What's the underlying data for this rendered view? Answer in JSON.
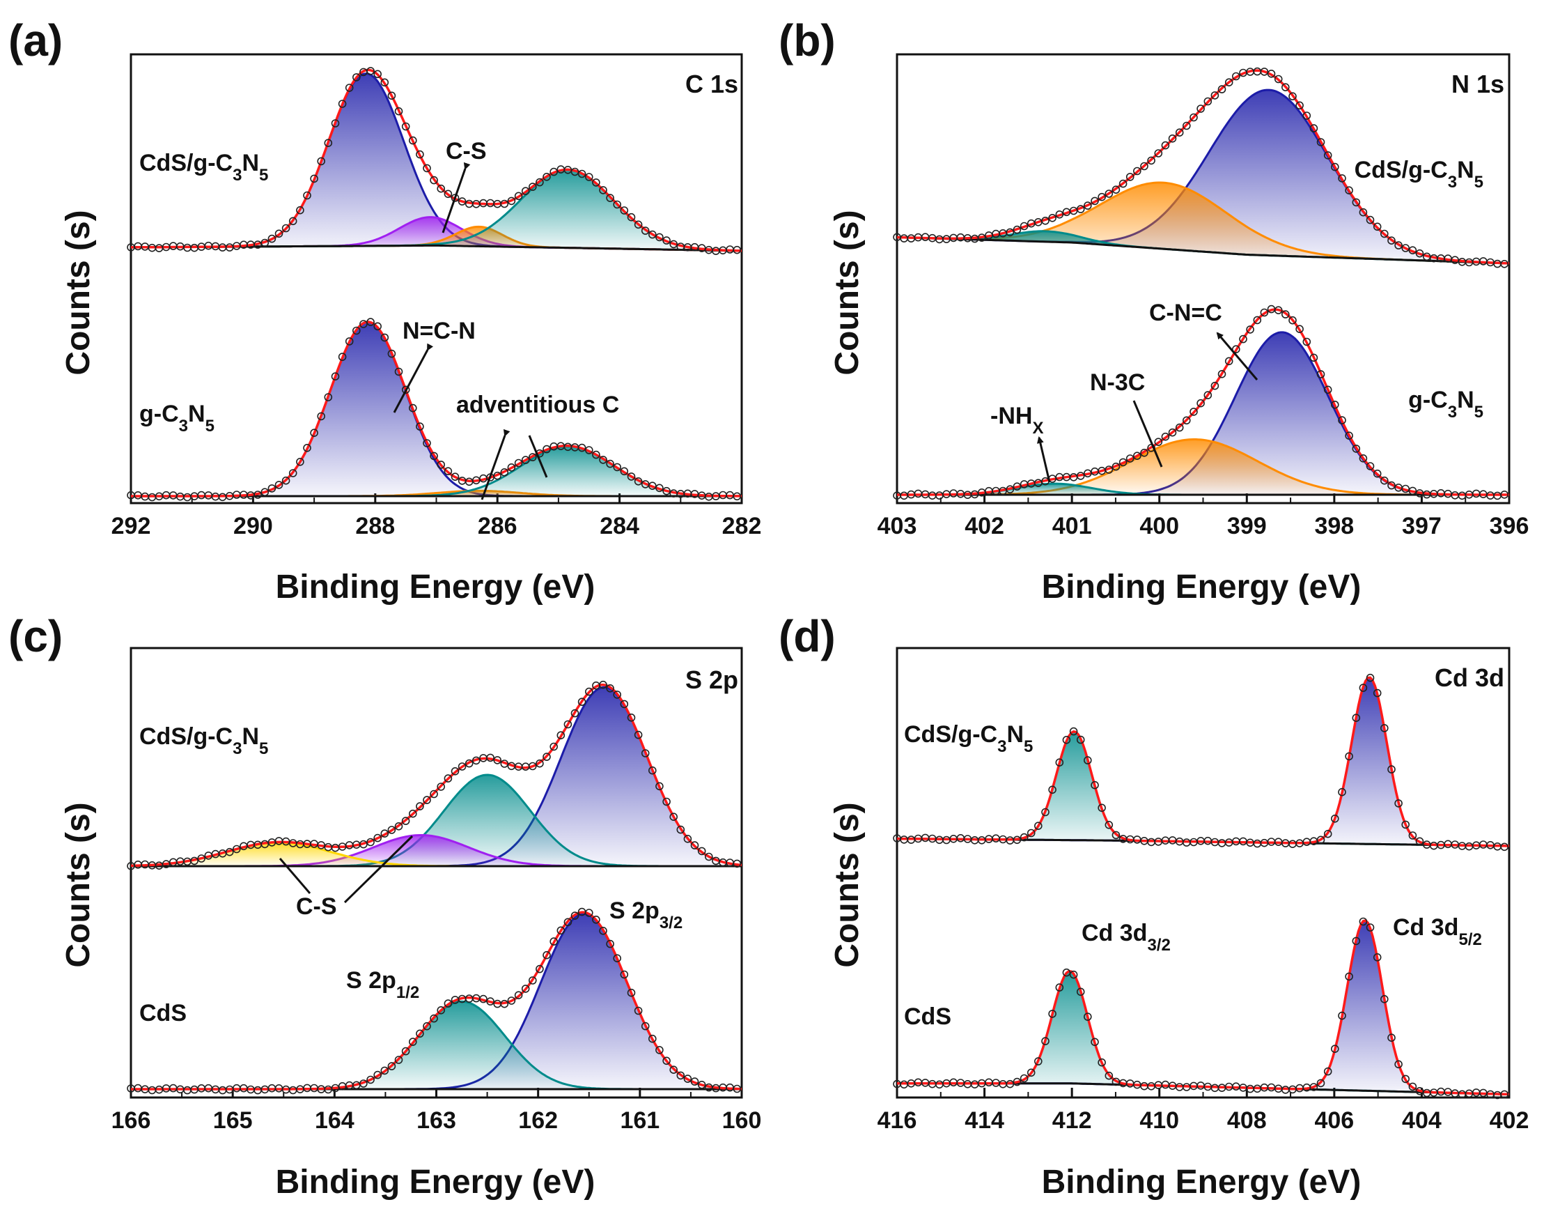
{
  "chart_data": [
    {
      "type": "line",
      "panel": "(a)",
      "core_level": "C 1s",
      "xlabel": "Binding Energy (eV)",
      "ylabel": "Counts (s)",
      "xlim": [
        292,
        282
      ],
      "xticks": [
        292,
        290,
        288,
        286,
        284,
        282
      ],
      "traces": [
        {
          "sample": "CdS/g-C3N5",
          "label_parts": [
            "CdS/g-C",
            "3",
            "N",
            "5"
          ],
          "baseline": [
            [
              292,
              0.02
            ],
            [
              287,
              0.03
            ],
            [
              282,
              0.0
            ]
          ],
          "components": [
            {
              "name": "N=C-N",
              "center": 288.15,
              "fwhm": 1.45,
              "height": 0.97,
              "color": "#1c1ca8"
            },
            {
              "name": "C-S",
              "center": 287.1,
              "fwhm": 1.2,
              "height": 0.16,
              "color": "#a020f0"
            },
            {
              "name": "C-S",
              "center": 286.3,
              "fwhm": 0.9,
              "height": 0.11,
              "color": "#ff8c00"
            },
            {
              "name": "adventitious C",
              "center": 284.85,
              "fwhm": 1.8,
              "height": 0.44,
              "color": "#008b8b"
            }
          ]
        },
        {
          "sample": "g-C3N5",
          "label_parts": [
            "g-C",
            "3",
            "N",
            "5"
          ],
          "baseline": [
            [
              292,
              0.0
            ],
            [
              282,
              0.0
            ]
          ],
          "components": [
            {
              "name": "N=C-N",
              "center": 288.12,
              "fwhm": 1.45,
              "height": 0.98,
              "color": "#1c1ca8"
            },
            {
              "name": "adventitious C",
              "center": 286.3,
              "fwhm": 1.6,
              "height": 0.03,
              "color": "#ff8c00"
            },
            {
              "name": "adventitious C",
              "center": 284.85,
              "fwhm": 1.8,
              "height": 0.28,
              "color": "#008b8b"
            }
          ]
        }
      ],
      "annotations": [
        "C-S",
        "N=C-N",
        "adventitious C"
      ]
    },
    {
      "type": "line",
      "panel": "(b)",
      "core_level": "N 1s",
      "xlabel": "Binding Energy (eV)",
      "ylabel": "Counts (s)",
      "xlim": [
        403,
        396
      ],
      "xticks": [
        403,
        402,
        401,
        400,
        399,
        398,
        397,
        396
      ],
      "traces": [
        {
          "sample": "CdS/g-C3N5",
          "label_parts": [
            "CdS/g-C",
            "3",
            "N",
            "5"
          ],
          "baseline": [
            [
              403,
              0.15
            ],
            [
              401,
              0.12
            ],
            [
              399,
              0.05
            ],
            [
              396,
              0.0
            ]
          ],
          "components": [
            {
              "name": "C-N=C",
              "center": 398.75,
              "fwhm": 1.6,
              "height": 0.95,
              "color": "#1c1ca8"
            },
            {
              "name": "N-3C",
              "center": 399.95,
              "fwhm": 1.7,
              "height": 0.38,
              "color": "#ff8c00"
            },
            {
              "name": "-NHX",
              "center": 401.3,
              "fwhm": 0.9,
              "height": 0.06,
              "color": "#008b8b"
            }
          ]
        },
        {
          "sample": "g-C3N5",
          "label_parts": [
            "g-C",
            "3",
            "N",
            "5"
          ],
          "baseline": [
            [
              403,
              0.0
            ],
            [
              396,
              0.0
            ]
          ],
          "components": [
            {
              "name": "C-N=C",
              "center": 398.6,
              "fwhm": 1.25,
              "height": 0.88,
              "color": "#1c1ca8"
            },
            {
              "name": "N-3C",
              "center": 399.6,
              "fwhm": 1.7,
              "height": 0.3,
              "color": "#ff8c00"
            },
            {
              "name": "-NHX",
              "center": 401.2,
              "fwhm": 1.0,
              "height": 0.06,
              "color": "#008b8b"
            }
          ]
        }
      ],
      "annotations": [
        "C-N=C",
        "N-3C",
        "-NHX"
      ]
    },
    {
      "type": "line",
      "panel": "(c)",
      "core_level": "S 2p",
      "xlabel": "Binding Energy (eV)",
      "ylabel": "Counts (s)",
      "xlim": [
        166,
        160
      ],
      "xticks": [
        166,
        165,
        164,
        163,
        162,
        161,
        160
      ],
      "traces": [
        {
          "sample": "CdS/g-C3N5",
          "label_parts": [
            "CdS/g-C",
            "3",
            "N",
            "5"
          ],
          "baseline": [
            [
              166,
              0.0
            ],
            [
              160,
              0.0
            ]
          ],
          "components": [
            {
              "name": "S 2p3/2",
              "center": 161.35,
              "fwhm": 1.0,
              "height": 0.98,
              "color": "#1c1ca8"
            },
            {
              "name": "S 2p1/2",
              "center": 162.5,
              "fwhm": 1.0,
              "height": 0.5,
              "color": "#008b8b"
            },
            {
              "name": "C-S",
              "center": 163.15,
              "fwhm": 1.1,
              "height": 0.17,
              "color": "#a020f0"
            },
            {
              "name": "C-S",
              "center": 164.55,
              "fwhm": 1.2,
              "height": 0.13,
              "color": "#ffd700"
            }
          ]
        },
        {
          "sample": "CdS",
          "label_parts": [
            "CdS",
            "",
            "",
            ""
          ],
          "baseline": [
            [
              166,
              0.0
            ],
            [
              160,
              0.0
            ]
          ],
          "components": [
            {
              "name": "S 2p3/2",
              "center": 161.55,
              "fwhm": 1.0,
              "height": 0.96,
              "color": "#1c1ca8"
            },
            {
              "name": "S 2p1/2",
              "center": 162.75,
              "fwhm": 1.0,
              "height": 0.48,
              "color": "#008b8b"
            }
          ]
        }
      ],
      "annotations": [
        "C-S",
        "S 2p3/2",
        "S 2p1/2"
      ]
    },
    {
      "type": "line",
      "panel": "(d)",
      "core_level": "Cd 3d",
      "xlabel": "Binding Energy (eV)",
      "ylabel": "Counts (s)",
      "xlim": [
        416,
        402
      ],
      "xticks": [
        416,
        414,
        412,
        410,
        408,
        406,
        404,
        402
      ],
      "traces": [
        {
          "sample": "CdS/g-C3N5",
          "label_parts": [
            "CdS/g-C",
            "3",
            "N",
            "5"
          ],
          "baseline": [
            [
              416,
              0.04
            ],
            [
              411,
              0.03
            ],
            [
              402,
              0.0
            ]
          ],
          "components": [
            {
              "name": "Cd 3d3/2",
              "center": 411.95,
              "fwhm": 0.95,
              "height": 0.6,
              "color": "#008b8b"
            },
            {
              "name": "Cd 3d5/2",
              "center": 405.2,
              "fwhm": 0.95,
              "height": 0.92,
              "color": "#1c1ca8"
            }
          ]
        },
        {
          "sample": "CdS",
          "label_parts": [
            "CdS",
            "",
            "",
            ""
          ],
          "baseline": [
            [
              416,
              0.02
            ],
            [
              412,
              0.02
            ],
            [
              402,
              -0.04
            ]
          ],
          "components": [
            {
              "name": "Cd 3d3/2",
              "center": 412.05,
              "fwhm": 0.95,
              "height": 0.62,
              "color": "#008b8b"
            },
            {
              "name": "Cd 3d5/2",
              "center": 405.3,
              "fwhm": 0.95,
              "height": 0.94,
              "color": "#1c1ca8"
            }
          ]
        }
      ],
      "annotations": [
        "Cd 3d3/2",
        "Cd 3d5/2"
      ]
    }
  ],
  "panel_letters": {
    "a": "(a)",
    "b": "(b)",
    "c": "(c)",
    "d": "(d)"
  },
  "core_levels": {
    "a": "C 1s",
    "b": "N 1s",
    "c": "S 2p",
    "d": "Cd 3d"
  },
  "axis_titles": {
    "x": "Binding Energy (eV)",
    "y": "Counts (s)"
  },
  "labels": {
    "sample_composite": "CdS/g-C",
    "sample_gcn": "g-C",
    "sample_cds": "CdS",
    "sub_3": "3",
    "sub_5": "5",
    "N_letter": "N",
    "sub_X": "X",
    "sub_3_2": "3/2",
    "sub_1_2": "1/2",
    "sub_5_2": "5/2"
  },
  "annotations": {
    "cs": "C-S",
    "ncn": "N=C-N",
    "adv": "adventitious C",
    "cnc": "C-N=C",
    "n3c": "N-3C",
    "nh": "-NH",
    "s2p": "S 2p",
    "cd3d": "Cd 3d"
  },
  "colors": {
    "envelope": "#ff1a1a",
    "background": "#111111",
    "markers": "#222222",
    "blue": "#1c1ca8",
    "teal": "#008b8b",
    "purple": "#a020f0",
    "orange": "#ff8c00",
    "yellow": "#ffd700"
  }
}
